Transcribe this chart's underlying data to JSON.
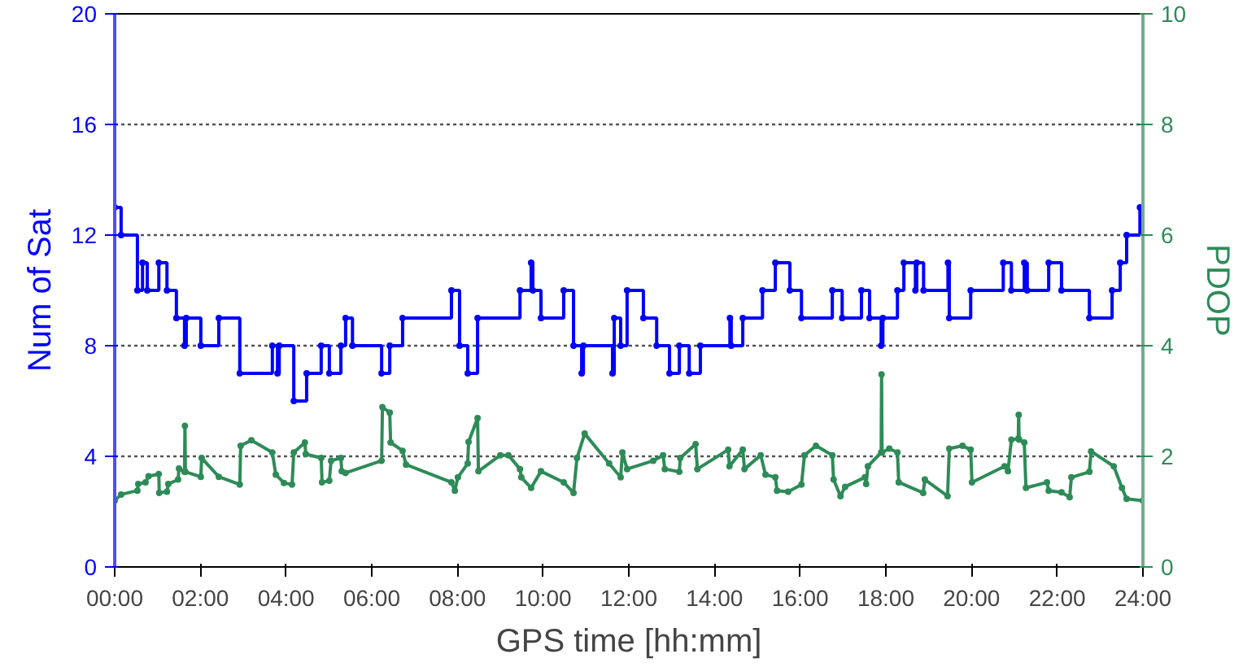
{
  "chart_data": {
    "type": "step",
    "xlabel": "GPS time [hh:mm]",
    "ylabel": "Num of Sat",
    "y2label": "PDOP",
    "xlim": [
      0,
      24
    ],
    "xticks": [
      {
        "value": 0,
        "label": "00:00"
      },
      {
        "value": 2,
        "label": "02:00"
      },
      {
        "value": 4,
        "label": "04:00"
      },
      {
        "value": 6,
        "label": "06:00"
      },
      {
        "value": 8,
        "label": "08:00"
      },
      {
        "value": 10,
        "label": "10:00"
      },
      {
        "value": 12,
        "label": "12:00"
      },
      {
        "value": 14,
        "label": "14:00"
      },
      {
        "value": 16,
        "label": "16:00"
      },
      {
        "value": 18,
        "label": "18:00"
      },
      {
        "value": 20,
        "label": "20:00"
      },
      {
        "value": 22,
        "label": "22:00"
      },
      {
        "value": 24,
        "label": "24:00"
      }
    ],
    "ylim": [
      0,
      20
    ],
    "yticks": [
      0,
      4,
      8,
      12,
      16,
      20
    ],
    "y2lim": [
      0,
      10
    ],
    "y2ticks": [
      0,
      2,
      4,
      6,
      8,
      10
    ],
    "grid": "y",
    "marker": "circle",
    "series": [
      {
        "color": "#0000ff",
        "x": [
          0,
          0.15,
          0.53,
          0.65,
          0.76,
          1.03,
          1.22,
          1.44,
          1.63,
          1.67,
          2.01,
          2.43,
          2.92,
          3.68,
          3.8,
          3.84,
          4.18,
          4.48,
          4.82,
          5.01,
          5.28,
          5.39,
          5.55,
          6.23,
          6.42,
          6.72,
          7.86,
          8.05,
          8.24,
          8.47,
          9.46,
          9.72,
          9.76,
          9.95,
          10.48,
          10.71,
          10.9,
          10.94,
          11.62,
          11.66,
          11.81,
          11.96,
          12.34,
          12.65,
          12.95,
          13.18,
          13.41,
          13.67,
          14.36,
          14.39,
          14.66,
          15.12,
          15.42,
          15.76,
          16.03,
          16.75,
          16.98,
          17.43,
          17.62,
          17.89,
          17.93,
          18.27,
          18.42,
          18.69,
          18.72,
          18.88,
          19.45,
          19.48,
          19.98,
          20.74,
          20.93,
          21.23,
          21.3,
          21.8,
          22.1,
          22.75,
          23.28,
          23.47,
          23.62,
          23.93,
          24
        ],
        "values": [
          13,
          12,
          10,
          11,
          10,
          11,
          10,
          9,
          8,
          9,
          8,
          9,
          7,
          8,
          7,
          8,
          6,
          7,
          8,
          7,
          8,
          9,
          8,
          7,
          8,
          9,
          10,
          8,
          7,
          9,
          10,
          11,
          10,
          9,
          10,
          8,
          7,
          8,
          7,
          9,
          8,
          10,
          9,
          8,
          7,
          8,
          7,
          8,
          9,
          8,
          9,
          10,
          11,
          10,
          9,
          10,
          9,
          10,
          9,
          8,
          9,
          10,
          11,
          10,
          11,
          10,
          11,
          9,
          10,
          11,
          10,
          11,
          10,
          11,
          10,
          9,
          10,
          11,
          12,
          13,
          13
        ]
      },
      {
        "type": "line",
        "axis": "y2",
        "color": "#2e8b57",
        "x": [
          0,
          0.15,
          0.53,
          0.55,
          0.72,
          0.79,
          1.03,
          1.04,
          1.22,
          1.25,
          1.48,
          1.5,
          1.63,
          1.64,
          1.65,
          2.01,
          2.03,
          2.43,
          2.92,
          2.94,
          3.19,
          3.68,
          3.76,
          3.95,
          4.14,
          4.18,
          4.44,
          4.46,
          4.82,
          4.84,
          5.01,
          5.05,
          5.28,
          5.3,
          5.39,
          6.23,
          6.25,
          6.42,
          6.44,
          6.72,
          6.8,
          7.86,
          7.94,
          8.01,
          8.24,
          8.26,
          8.47,
          8.49,
          9.0,
          9.19,
          9.46,
          9.49,
          9.72,
          9.95,
          10.48,
          10.71,
          10.79,
          10.97,
          11.54,
          11.81,
          11.85,
          11.96,
          12.57,
          12.8,
          12.84,
          13.18,
          13.2,
          13.56,
          13.6,
          14.32,
          14.35,
          14.66,
          14.7,
          15.08,
          15.19,
          15.42,
          15.46,
          15.72,
          16.03,
          16.1,
          16.37,
          16.75,
          16.78,
          16.94,
          17.05,
          17.51,
          17.54,
          17.58,
          17.89,
          17.9,
          17.91,
          18.08,
          18.27,
          18.3,
          18.87,
          18.91,
          19.44,
          19.48,
          19.79,
          19.98,
          20.01,
          20.77,
          20.85,
          20.93,
          21.09,
          21.1,
          21.11,
          21.23,
          21.27,
          21.76,
          21.8,
          22.1,
          22.29,
          22.33,
          22.75,
          22.79,
          23.32,
          23.51,
          23.62,
          24
        ],
        "values": [
          1.2,
          1.31,
          1.38,
          1.5,
          1.53,
          1.64,
          1.68,
          1.34,
          1.36,
          1.5,
          1.58,
          1.78,
          1.72,
          2.55,
          1.72,
          1.63,
          1.97,
          1.63,
          1.49,
          2.19,
          2.29,
          2.07,
          1.67,
          1.52,
          1.49,
          2.07,
          2.25,
          2.04,
          1.97,
          1.53,
          1.56,
          1.92,
          1.97,
          1.73,
          1.7,
          1.92,
          2.89,
          2.79,
          2.25,
          2.1,
          1.85,
          1.53,
          1.38,
          1.62,
          1.87,
          2.26,
          2.69,
          1.73,
          2.02,
          2.02,
          1.77,
          1.62,
          1.43,
          1.73,
          1.53,
          1.34,
          1.97,
          2.41,
          1.87,
          1.62,
          2.07,
          1.77,
          1.92,
          2.02,
          1.77,
          1.72,
          1.97,
          2.22,
          1.77,
          2.12,
          1.82,
          2.12,
          1.77,
          2.02,
          1.67,
          1.62,
          1.38,
          1.36,
          1.49,
          2.02,
          2.19,
          2.02,
          1.58,
          1.28,
          1.45,
          1.62,
          1.5,
          1.82,
          2.07,
          3.48,
          2.07,
          2.14,
          2.07,
          1.53,
          1.34,
          1.58,
          1.28,
          2.14,
          2.19,
          2.12,
          1.53,
          1.82,
          1.73,
          2.3,
          2.32,
          2.75,
          2.3,
          2.25,
          1.43,
          1.53,
          1.38,
          1.35,
          1.26,
          1.62,
          1.72,
          2.09,
          1.82,
          1.43,
          1.23,
          1.2
        ]
      }
    ]
  }
}
